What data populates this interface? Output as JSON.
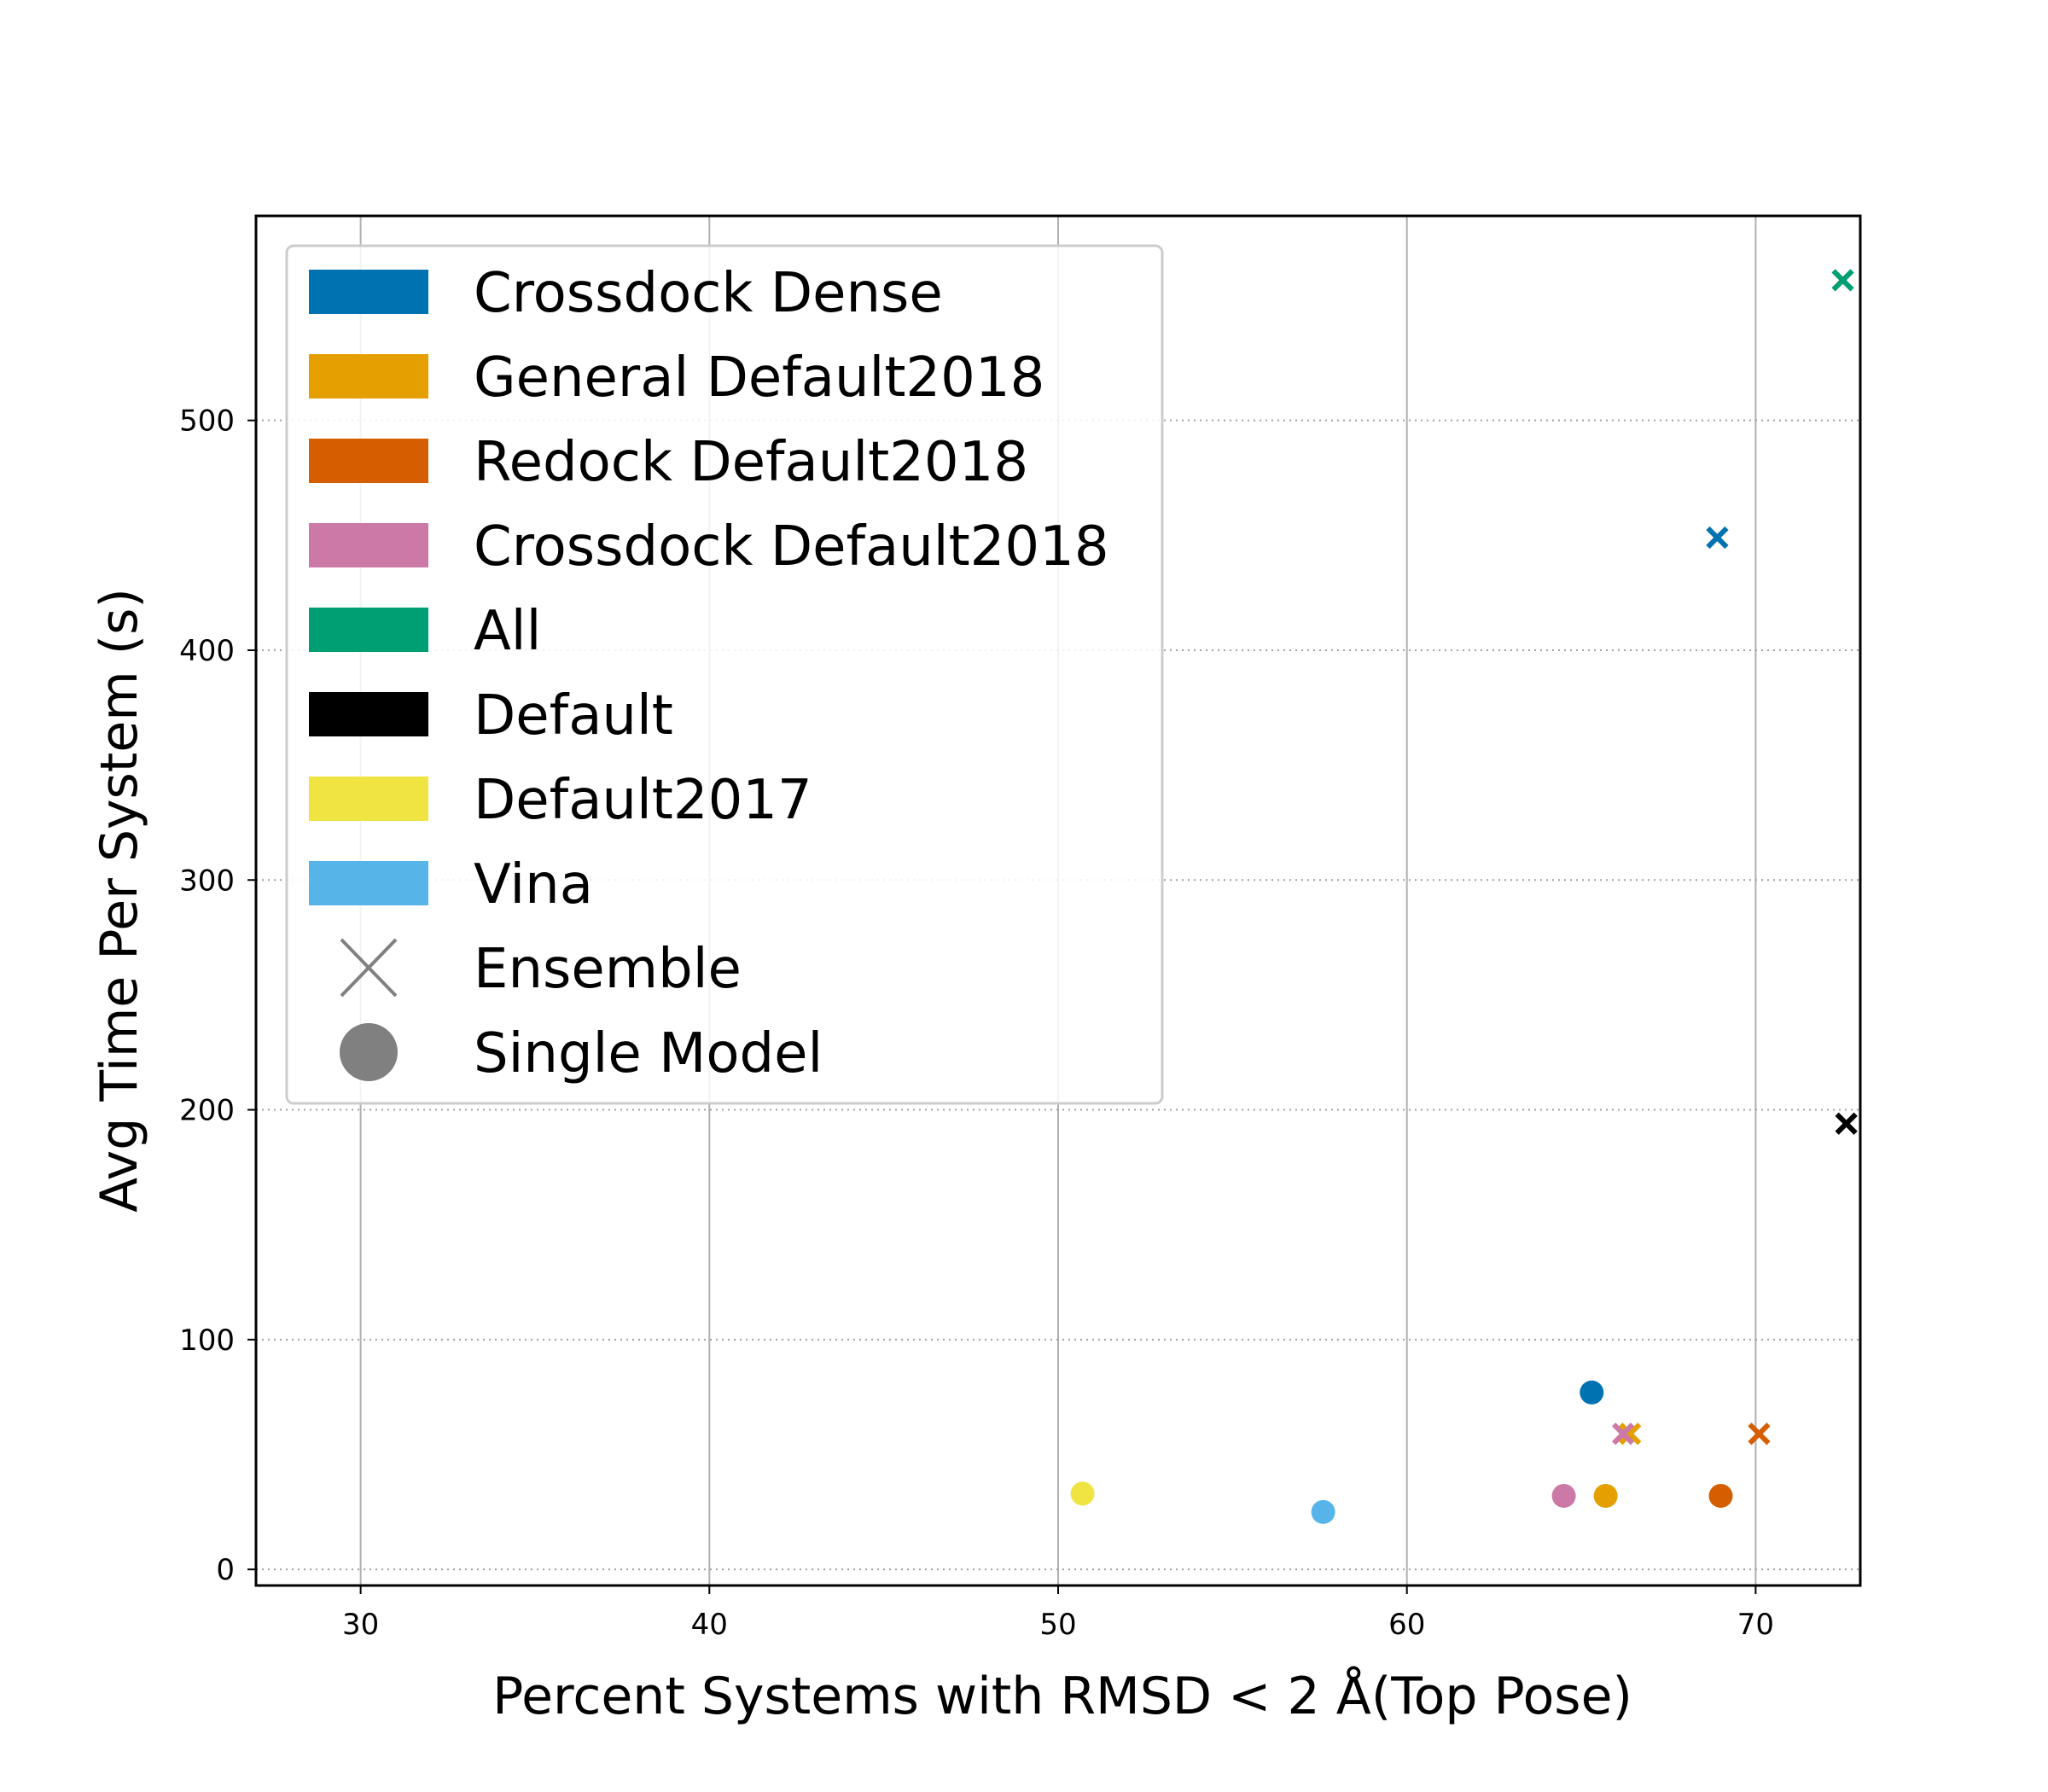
{
  "chart_data": {
    "type": "scatter",
    "xlabel": "Percent Systems with RMSD < 2 Å(Top Pose)",
    "ylabel": "Avg Time Per System (s)",
    "xlim": [
      27,
      73
    ],
    "ylim": [
      -7,
      589
    ],
    "x_ticks": [
      30,
      40,
      50,
      60,
      70
    ],
    "y_ticks": [
      0,
      100,
      200,
      300,
      400,
      500
    ],
    "grid": {
      "x": "solid gray",
      "y": "dotted gray"
    },
    "legend_position": "upper left",
    "series": [
      {
        "name": "Crossdock Dense",
        "color": "#0072b2",
        "points": [
          {
            "x": 65.3,
            "y": 77,
            "marker": "circle"
          },
          {
            "x": 68.9,
            "y": 449,
            "marker": "x"
          }
        ]
      },
      {
        "name": "General Default2018",
        "color": "#e69f00",
        "points": [
          {
            "x": 65.7,
            "y": 32,
            "marker": "circle"
          },
          {
            "x": 66.4,
            "y": 59,
            "marker": "x"
          }
        ]
      },
      {
        "name": "Redock Default2018",
        "color": "#d55e00",
        "points": [
          {
            "x": 69.0,
            "y": 32,
            "marker": "circle"
          },
          {
            "x": 70.1,
            "y": 59,
            "marker": "x"
          }
        ]
      },
      {
        "name": "Crossdock Default2018",
        "color": "#cc79a7",
        "points": [
          {
            "x": 64.5,
            "y": 32,
            "marker": "circle"
          },
          {
            "x": 66.2,
            "y": 59,
            "marker": "x"
          }
        ]
      },
      {
        "name": "All",
        "color": "#009e73",
        "points": [
          {
            "x": 72.5,
            "y": 561,
            "marker": "x"
          }
        ]
      },
      {
        "name": "Default",
        "color": "#000000",
        "points": [
          {
            "x": 72.6,
            "y": 194,
            "marker": "x"
          }
        ]
      },
      {
        "name": "Default2017",
        "color": "#f0e442",
        "points": [
          {
            "x": 50.7,
            "y": 33,
            "marker": "circle"
          }
        ]
      },
      {
        "name": "Vina",
        "color": "#56b4e9",
        "points": [
          {
            "x": 57.6,
            "y": 25,
            "marker": "circle"
          }
        ]
      }
    ],
    "marker_legend": [
      {
        "name": "Ensemble",
        "marker": "x",
        "color": "#808080"
      },
      {
        "name": "Single Model",
        "marker": "circle",
        "color": "#808080"
      }
    ]
  }
}
